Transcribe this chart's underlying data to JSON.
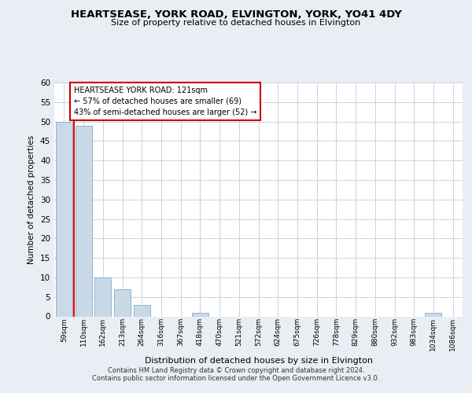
{
  "title": "HEARTSEASE, YORK ROAD, ELVINGTON, YORK, YO41 4DY",
  "subtitle": "Size of property relative to detached houses in Elvington",
  "xlabel": "Distribution of detached houses by size in Elvington",
  "ylabel": "Number of detached properties",
  "bin_labels": [
    "59sqm",
    "110sqm",
    "162sqm",
    "213sqm",
    "264sqm",
    "316sqm",
    "367sqm",
    "418sqm",
    "470sqm",
    "521sqm",
    "572sqm",
    "624sqm",
    "675sqm",
    "726sqm",
    "778sqm",
    "829sqm",
    "880sqm",
    "932sqm",
    "983sqm",
    "1034sqm",
    "1086sqm"
  ],
  "bar_values": [
    50,
    49,
    10,
    7,
    3,
    0,
    0,
    1,
    0,
    0,
    0,
    0,
    0,
    0,
    0,
    0,
    0,
    0,
    0,
    1,
    0
  ],
  "bar_color": "#c9d9e8",
  "bar_edge_color": "#7fafc8",
  "ylim": [
    0,
    60
  ],
  "yticks": [
    0,
    5,
    10,
    15,
    20,
    25,
    30,
    35,
    40,
    45,
    50,
    55,
    60
  ],
  "red_line_x": 0.5,
  "annotation_text": "HEARTSEASE YORK ROAD: 121sqm\n← 57% of detached houses are smaller (69)\n43% of semi-detached houses are larger (52) →",
  "annotation_box_color": "#ffffff",
  "annotation_box_edge": "#cc0000",
  "footer_line1": "Contains HM Land Registry data © Crown copyright and database right 2024.",
  "footer_line2": "Contains public sector information licensed under the Open Government Licence v3.0.",
  "bg_color": "#e8eef4",
  "plot_bg_color": "#ffffff",
  "grid_color": "#c8d4e0",
  "title_fontsize": 9.5,
  "subtitle_fontsize": 8.0,
  "ylabel_fontsize": 7.5,
  "xlabel_fontsize": 8.0,
  "tick_fontsize": 6.5,
  "ytick_fontsize": 7.5,
  "annotation_fontsize": 7.0,
  "footer_fontsize": 6.0
}
